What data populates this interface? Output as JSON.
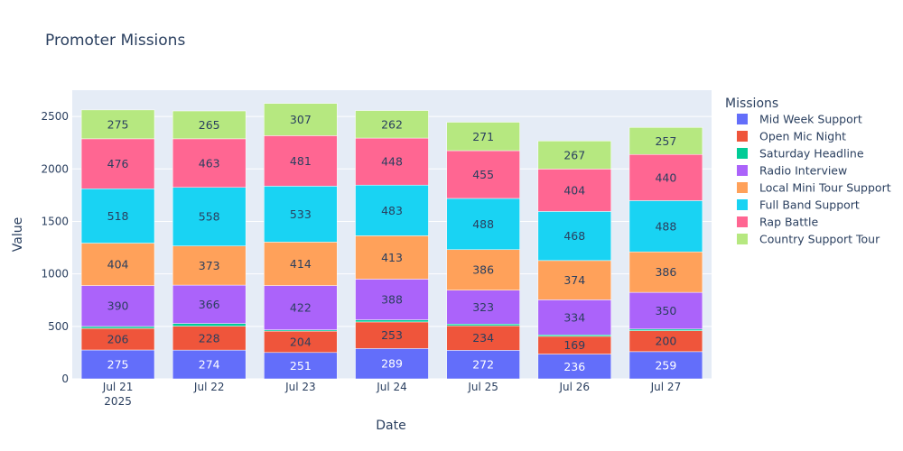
{
  "chart_data": {
    "type": "bar",
    "stacked": true,
    "title": "Promoter Missions",
    "xlabel": "Date",
    "ylabel": "Value",
    "legend_title": "Missions",
    "legend_position": "right",
    "grid": true,
    "ylim": [
      0,
      2750
    ],
    "yticks": [
      0,
      500,
      1000,
      1500,
      2000,
      2500
    ],
    "categories": [
      "Jul 21",
      "Jul 22",
      "Jul 23",
      "Jul 24",
      "Jul 25",
      "Jul 26",
      "Jul 27"
    ],
    "category_sublabels": [
      "2025",
      "",
      "",
      "",
      "",
      "",
      ""
    ],
    "series": [
      {
        "name": "Mid Week Support",
        "color": "#636efa",
        "values": [
          275,
          274,
          251,
          289,
          272,
          236,
          259
        ]
      },
      {
        "name": "Open Mic Night",
        "color": "#ef553b",
        "values": [
          206,
          228,
          204,
          253,
          234,
          169,
          200
        ]
      },
      {
        "name": "Saturday Headline",
        "color": "#00cc96",
        "values": [
          18,
          25,
          12,
          20,
          16,
          14,
          15
        ]
      },
      {
        "name": "Radio Interview",
        "color": "#ab63fa",
        "values": [
          390,
          366,
          422,
          388,
          323,
          334,
          350
        ]
      },
      {
        "name": "Local Mini Tour Support",
        "color": "#ffa15a",
        "values": [
          404,
          373,
          414,
          413,
          386,
          374,
          386
        ]
      },
      {
        "name": "Full Band Support",
        "color": "#19d3f3",
        "values": [
          518,
          558,
          533,
          483,
          488,
          468,
          488
        ]
      },
      {
        "name": "Rap Battle",
        "color": "#ff6692",
        "values": [
          476,
          463,
          481,
          448,
          455,
          404,
          440
        ]
      },
      {
        "name": "Country Support Tour",
        "color": "#b6e880",
        "values": [
          275,
          265,
          307,
          262,
          271,
          267,
          257
        ]
      }
    ],
    "plot_background": "#e5ecf6"
  }
}
